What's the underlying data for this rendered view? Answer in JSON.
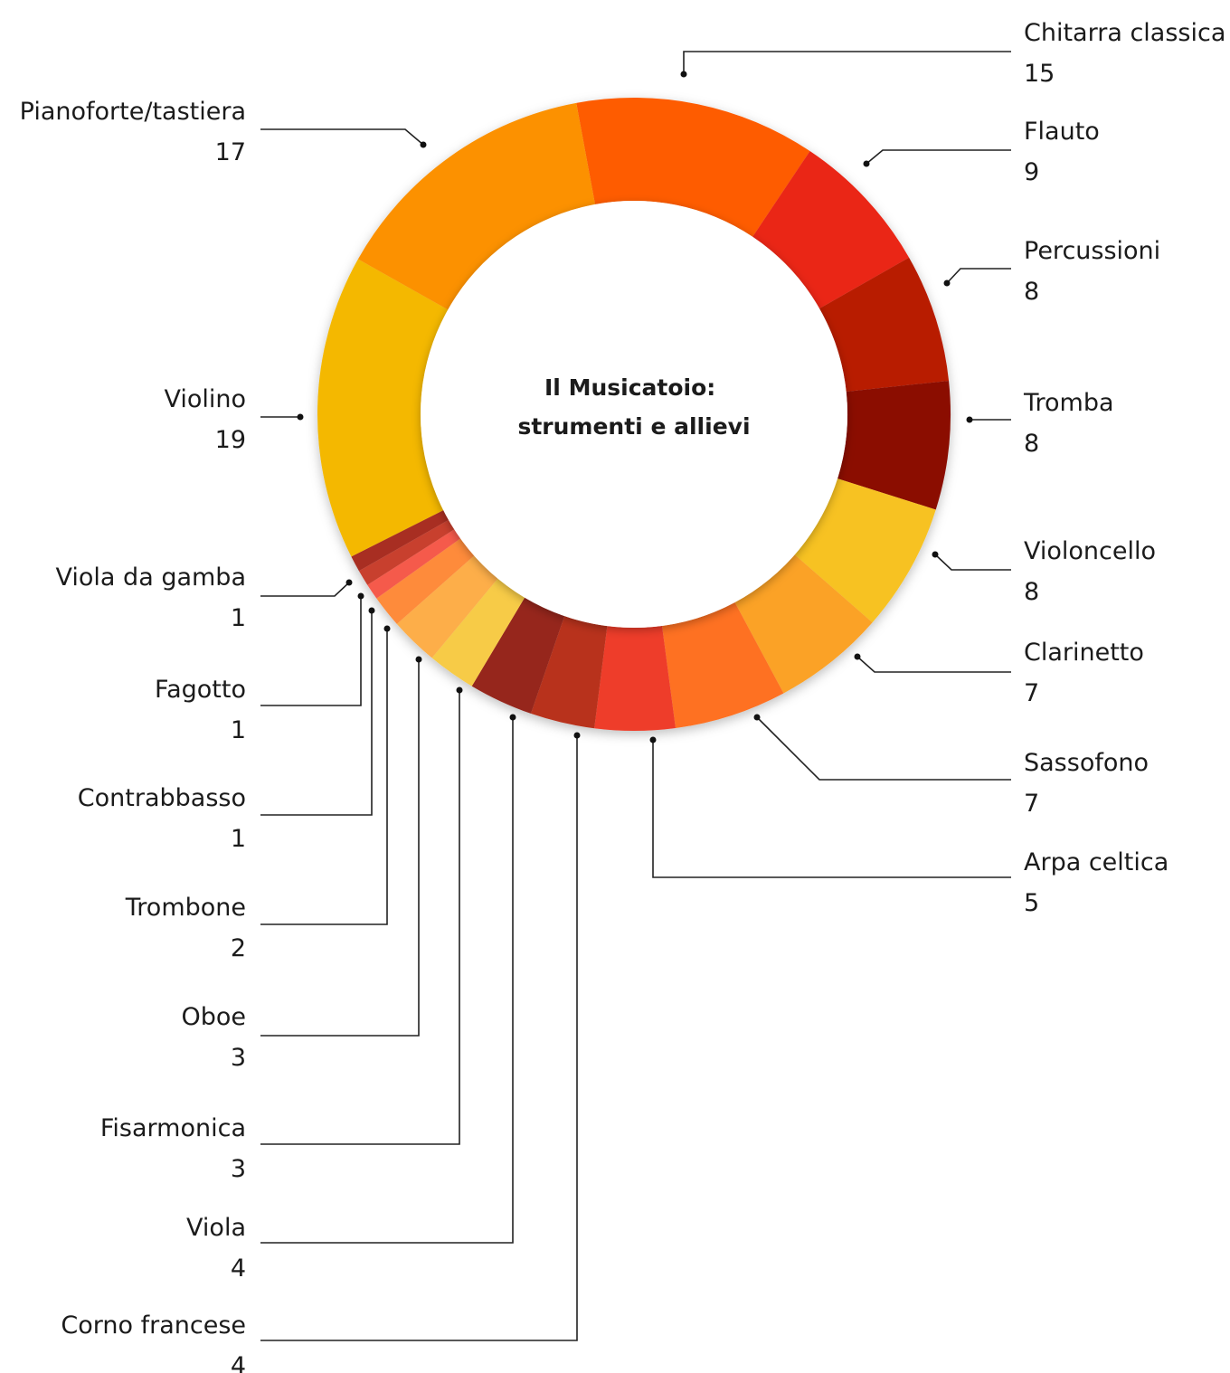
{
  "chart_data": {
    "type": "pie",
    "variant": "donut",
    "title_lines": [
      "Il Musicatoio:",
      "strumenti e allievi"
    ],
    "slices": [
      {
        "name": "Chitarra classica",
        "value": 15,
        "color": "#FE5B06"
      },
      {
        "name": "Flauto",
        "value": 9,
        "color": "#EA2714"
      },
      {
        "name": "Percussioni",
        "value": 8,
        "color": "#B81A05"
      },
      {
        "name": "Tromba",
        "value": 8,
        "color": "#8B1102"
      },
      {
        "name": "Violoncello",
        "value": 8,
        "color": "#F7C223"
      },
      {
        "name": "Clarinetto",
        "value": 7,
        "color": "#FBA226"
      },
      {
        "name": "Sassofono",
        "value": 7,
        "color": "#FE7121"
      },
      {
        "name": "Arpa celtica",
        "value": 5,
        "color": "#EE3E2A"
      },
      {
        "name": "Corno francese",
        "value": 4,
        "color": "#B8301A"
      },
      {
        "name": "Viola",
        "value": 4,
        "color": "#96251A"
      },
      {
        "name": "Fisarmonica",
        "value": 3,
        "color": "#F7CB47"
      },
      {
        "name": "Oboe",
        "value": 3,
        "color": "#FDAE4A"
      },
      {
        "name": "Trombone",
        "value": 2,
        "color": "#FE8B3A"
      },
      {
        "name": "Contrabbasso",
        "value": 1,
        "color": "#F55A4B"
      },
      {
        "name": "Fagotto",
        "value": 1,
        "color": "#C8402E"
      },
      {
        "name": "Viola da gamba",
        "value": 1,
        "color": "#A82E22"
      },
      {
        "name": "Violino",
        "value": 19,
        "color": "#F4B803"
      },
      {
        "name": "Pianoforte/tastiera",
        "value": 17,
        "color": "#FC9102"
      }
    ]
  }
}
